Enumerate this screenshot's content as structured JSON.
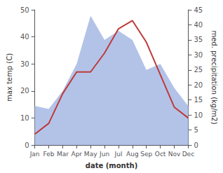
{
  "chart_data": {
    "type": "line",
    "categories": [
      "Jan",
      "Feb",
      "Mar",
      "Apr",
      "May",
      "Jun",
      "Jul",
      "Aug",
      "Sep",
      "Oct",
      "Nov",
      "Dec"
    ],
    "xlabel": "date (month)",
    "ylabel": "max temp (C)",
    "y2label": "med. precipitation (kg/m2)",
    "ylim": [
      0,
      50
    ],
    "yticks": [
      0,
      10,
      20,
      30,
      40,
      50
    ],
    "y2lim": [
      0,
      45
    ],
    "y2ticks": [
      0,
      5,
      10,
      15,
      20,
      25,
      30,
      35,
      40,
      45
    ],
    "grid": false,
    "series": [
      {
        "type": "area",
        "axis": "y2",
        "color": "#b3c3e8",
        "values": [
          13,
          12,
          18,
          27,
          43,
          35,
          38,
          35,
          25,
          27,
          19,
          13
        ]
      },
      {
        "type": "line",
        "color": "#be3a3a",
        "values": [
          4,
          8,
          19,
          27,
          27,
          34,
          43,
          46,
          38,
          26,
          14,
          10
        ]
      }
    ]
  }
}
